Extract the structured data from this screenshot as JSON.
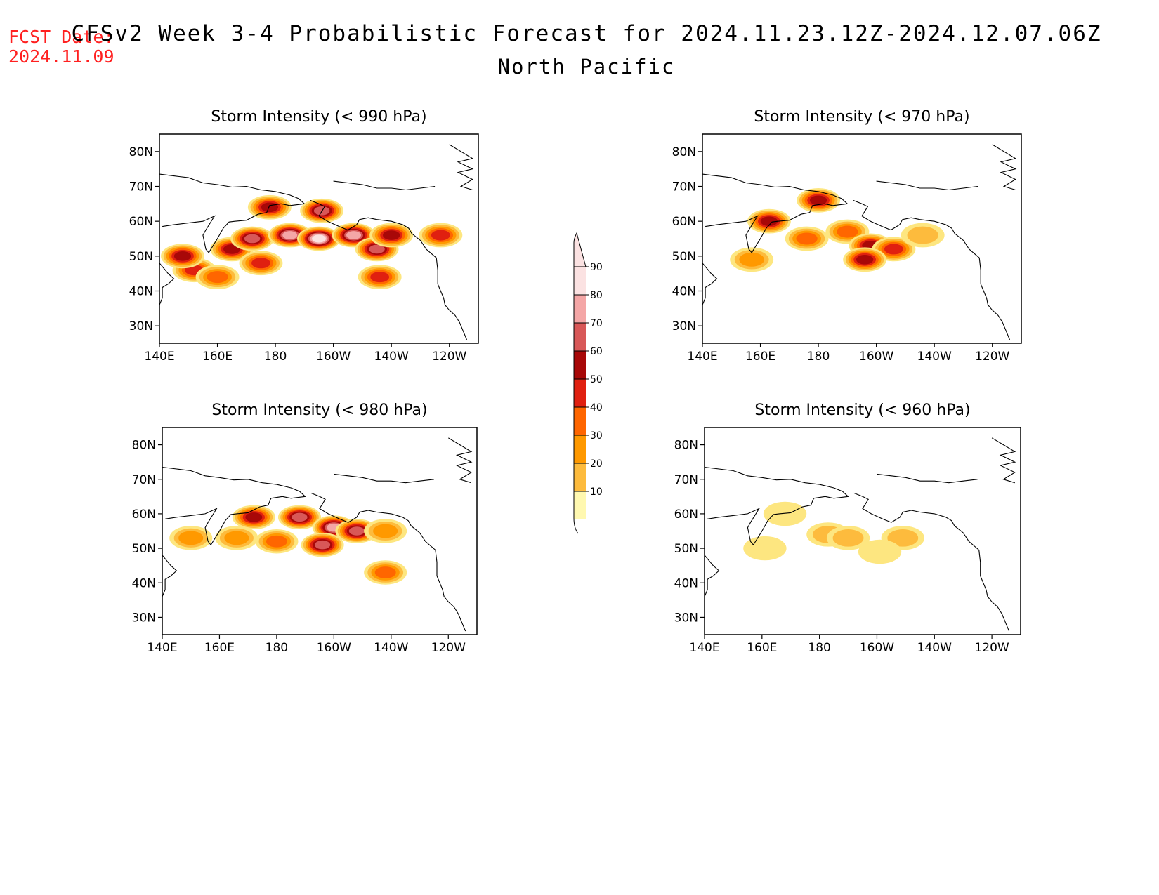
{
  "header": {
    "fcst_label": "FCST Date:",
    "fcst_date": "2024.11.09",
    "title": "CFSv2 Week 3-4 Probabilistic Forecast for 2024.11.23.12Z-2024.12.07.06Z",
    "region": "North Pacific"
  },
  "axes": {
    "lon_labels": [
      "140E",
      "160E",
      "180",
      "160W",
      "140W",
      "120W"
    ],
    "lat_labels": [
      "80N",
      "70N",
      "60N",
      "50N",
      "40N",
      "30N"
    ]
  },
  "panels": [
    {
      "title": "Storm Intensity (< 990 hPa)",
      "blobs": [
        {
          "lon": 165,
          "lat": 52,
          "level": 60
        },
        {
          "lon": 152,
          "lat": 46,
          "level": 50
        },
        {
          "lon": 160,
          "lat": 44,
          "level": 40
        },
        {
          "lon": 148,
          "lat": 50,
          "level": 60
        },
        {
          "lon": 175,
          "lat": 48,
          "level": 50
        },
        {
          "lon": 172,
          "lat": 55,
          "level": 70
        },
        {
          "lon": 185,
          "lat": 56,
          "level": 80
        },
        {
          "lon": 195,
          "lat": 55,
          "level": 90
        },
        {
          "lon": 207,
          "lat": 56,
          "level": 80
        },
        {
          "lon": 215,
          "lat": 52,
          "level": 70
        },
        {
          "lon": 220,
          "lat": 56,
          "level": 60
        },
        {
          "lon": 216,
          "lat": 44,
          "level": 50
        },
        {
          "lon": 237,
          "lat": 56,
          "level": 50
        },
        {
          "lon": 178,
          "lat": 64,
          "level": 60
        },
        {
          "lon": 196,
          "lat": 63,
          "level": 70
        }
      ]
    },
    {
      "title": "Storm Intensity (< 970 hPa)",
      "blobs": [
        {
          "lon": 163,
          "lat": 60,
          "level": 60
        },
        {
          "lon": 176,
          "lat": 55,
          "level": 40
        },
        {
          "lon": 190,
          "lat": 57,
          "level": 40
        },
        {
          "lon": 198,
          "lat": 53,
          "level": 60
        },
        {
          "lon": 206,
          "lat": 52,
          "level": 50
        },
        {
          "lon": 196,
          "lat": 49,
          "level": 60
        },
        {
          "lon": 157,
          "lat": 49,
          "level": 30
        },
        {
          "lon": 180,
          "lat": 66,
          "level": 60
        },
        {
          "lon": 216,
          "lat": 56,
          "level": 20
        }
      ]
    },
    {
      "title": "Storm Intensity (< 980 hPa)",
      "blobs": [
        {
          "lon": 172,
          "lat": 59,
          "level": 60
        },
        {
          "lon": 188,
          "lat": 59,
          "level": 70
        },
        {
          "lon": 200,
          "lat": 56,
          "level": 80
        },
        {
          "lon": 208,
          "lat": 55,
          "level": 70
        },
        {
          "lon": 196,
          "lat": 51,
          "level": 70
        },
        {
          "lon": 180,
          "lat": 52,
          "level": 40
        },
        {
          "lon": 166,
          "lat": 53,
          "level": 30
        },
        {
          "lon": 150,
          "lat": 53,
          "level": 30
        },
        {
          "lon": 218,
          "lat": 43,
          "level": 40
        },
        {
          "lon": 218,
          "lat": 55,
          "level": 30
        }
      ]
    },
    {
      "title": "Storm Intensity (< 960 hPa)",
      "blobs": [
        {
          "lon": 183,
          "lat": 54,
          "level": 20
        },
        {
          "lon": 190,
          "lat": 53,
          "level": 20
        },
        {
          "lon": 209,
          "lat": 53,
          "level": 20
        },
        {
          "lon": 201,
          "lat": 49,
          "level": 10
        },
        {
          "lon": 161,
          "lat": 50,
          "level": 10
        },
        {
          "lon": 168,
          "lat": 60,
          "level": 10
        }
      ]
    }
  ],
  "colorbar": {
    "levels": [
      "10",
      "20",
      "30",
      "40",
      "50",
      "60",
      "70",
      "80",
      "90"
    ],
    "colors": [
      "#fff8b0",
      "#fde680",
      "#fdbb3d",
      "#ff9900",
      "#ff6600",
      "#e02010",
      "#a80808",
      "#d85858",
      "#f4a6a6",
      "#fbe2e2"
    ]
  }
}
